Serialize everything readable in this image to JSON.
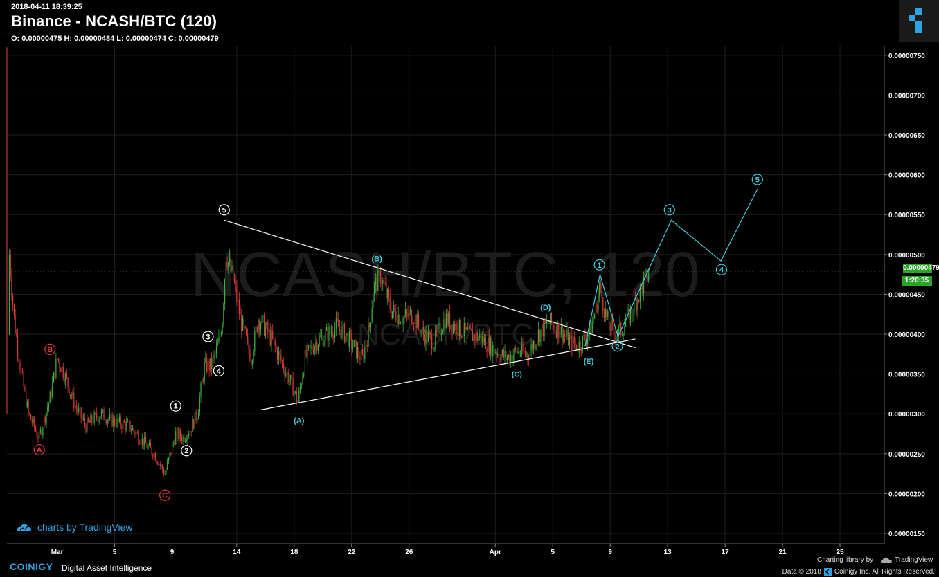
{
  "header": {
    "timestamp": "2018-04-11 18:39:25",
    "title": "Binance - NCASH/BTC (120)",
    "ohlc": "O: 0.00000475 H: 0.00000484 L: 0.00000474 C: 0.00000479"
  },
  "watermark": {
    "main": "NCASH/BTC, 120",
    "sub": "NCASH/BTC"
  },
  "branding": {
    "tradingview": "charts by TradingView",
    "coinigy": "COINIGY",
    "coinigy_tagline": "Digital Asset Intelligence",
    "charting_library": "Charting library by",
    "tradingview_name": "TradingView",
    "copyright": "Data © 2018",
    "copyright_owner": "Coinigy Inc. All Rights Reserved."
  },
  "colors": {
    "background": "#000000",
    "candle_up": "#3cb13c",
    "candle_down": "#e03b3b",
    "wave_white": "#ffffff",
    "wave_cyan": "#3fd0e0",
    "wave_red": "#e03b3b",
    "price_tag": "#2aa52a"
  },
  "chart_data": {
    "type": "candlestick",
    "exchange": "Binance",
    "pair": "NCASH/BTC",
    "interval": "120",
    "ylim": [
      1.37e-06,
      7.62e-06
    ],
    "y_ticks": [
      "0.00000150",
      "0.00000200",
      "0.00000250",
      "0.00000300",
      "0.00000350",
      "0.00000400",
      "0.00000450",
      "0.00000500",
      "0.00000550",
      "0.00000600",
      "0.00000650",
      "0.00000700",
      "0.00000750"
    ],
    "x_ticks": [
      "Mar",
      "5",
      "9",
      "14",
      "18",
      "22",
      "26",
      "Apr",
      "5",
      "9",
      "13",
      "17",
      "21",
      "25"
    ],
    "last_price": "0.00000479",
    "countdown": "1:20:35",
    "price_path": [
      [
        "2018-02-26 00:00",
        3e-06
      ],
      [
        "2018-02-26 04:00",
        5e-06
      ],
      [
        "2018-02-26 12:00",
        4.2e-06
      ],
      [
        "2018-02-27 00:00",
        3.5e-06
      ],
      [
        "2018-02-27 12:00",
        3e-06
      ],
      [
        "2018-02-28 06:00",
        2.7e-06
      ],
      [
        "2018-03-01 00:00",
        3.2e-06
      ],
      [
        "2018-03-01 12:00",
        3.7e-06
      ],
      [
        "2018-03-02 00:00",
        3.5e-06
      ],
      [
        "2018-03-02 18:00",
        3.1e-06
      ],
      [
        "2018-03-03 12:00",
        2.85e-06
      ],
      [
        "2018-03-04 12:00",
        3e-06
      ],
      [
        "2018-03-05 12:00",
        2.9e-06
      ],
      [
        "2018-03-06 12:00",
        2.85e-06
      ],
      [
        "2018-03-07 06:00",
        2.7e-06
      ],
      [
        "2018-03-08 06:00",
        2.5e-06
      ],
      [
        "2018-03-09 00:00",
        2.25e-06
      ],
      [
        "2018-03-09 18:00",
        2.75e-06
      ],
      [
        "2018-03-10 06:00",
        2.7e-06
      ],
      [
        "2018-03-10 18:00",
        2.8e-06
      ],
      [
        "2018-03-11 06:00",
        3e-06
      ],
      [
        "2018-03-11 18:00",
        3.6e-06
      ],
      [
        "2018-03-12 06:00",
        3.6e-06
      ],
      [
        "2018-03-12 18:00",
        3.9e-06
      ],
      [
        "2018-03-13 00:00",
        4.2e-06
      ],
      [
        "2018-03-13 06:00",
        5e-06
      ],
      [
        "2018-03-13 18:00",
        4.7e-06
      ],
      [
        "2018-03-14 06:00",
        4.2e-06
      ],
      [
        "2018-03-15 00:00",
        3.7e-06
      ],
      [
        "2018-03-15 12:00",
        4.2e-06
      ],
      [
        "2018-03-16 06:00",
        4e-06
      ],
      [
        "2018-03-17 00:00",
        3.7e-06
      ],
      [
        "2018-03-17 18:00",
        3.4e-06
      ],
      [
        "2018-03-18 06:00",
        3.15e-06
      ],
      [
        "2018-03-18 18:00",
        3.7e-06
      ],
      [
        "2018-03-19 12:00",
        3.9e-06
      ],
      [
        "2018-03-20 06:00",
        4e-06
      ],
      [
        "2018-03-21 00:00",
        4.1e-06
      ],
      [
        "2018-03-21 18:00",
        3.95e-06
      ],
      [
        "2018-03-22 12:00",
        3.75e-06
      ],
      [
        "2018-03-22 18:00",
        3.7e-06
      ],
      [
        "2018-03-23 06:00",
        4.1e-06
      ],
      [
        "2018-03-23 12:00",
        4.55e-06
      ],
      [
        "2018-03-24 00:00",
        4.75e-06
      ],
      [
        "2018-03-24 18:00",
        4.3e-06
      ],
      [
        "2018-03-25 12:00",
        4.2e-06
      ],
      [
        "2018-03-26 06:00",
        4.25e-06
      ],
      [
        "2018-03-27 00:00",
        4e-06
      ],
      [
        "2018-03-27 18:00",
        3.9e-06
      ],
      [
        "2018-03-28 12:00",
        4.2e-06
      ],
      [
        "2018-03-29 06:00",
        4.1e-06
      ],
      [
        "2018-03-30 00:00",
        4e-06
      ],
      [
        "2018-03-31 00:00",
        3.95e-06
      ],
      [
        "2018-04-01 00:00",
        3.8e-06
      ],
      [
        "2018-04-01 18:00",
        3.7e-06
      ],
      [
        "2018-04-02 12:00",
        3.78e-06
      ],
      [
        "2018-04-03 06:00",
        3.75e-06
      ],
      [
        "2018-04-04 00:00",
        4e-06
      ],
      [
        "2018-04-04 18:00",
        4.15e-06
      ],
      [
        "2018-04-05 12:00",
        4.05e-06
      ],
      [
        "2018-04-06 06:00",
        3.9e-06
      ],
      [
        "2018-04-06 18:00",
        3.85e-06
      ],
      [
        "2018-04-07 12:00",
        4e-06
      ],
      [
        "2018-04-08 00:00",
        4.3e-06
      ],
      [
        "2018-04-08 06:00",
        4.6e-06
      ],
      [
        "2018-04-08 18:00",
        4.2e-06
      ],
      [
        "2018-04-09 06:00",
        4e-06
      ],
      [
        "2018-04-09 18:00",
        4.05e-06
      ],
      [
        "2018-04-10 06:00",
        4.2e-06
      ],
      [
        "2018-04-10 18:00",
        4.4e-06
      ],
      [
        "2018-04-11 06:00",
        4.6e-06
      ],
      [
        "2018-04-11 18:00",
        4.79e-06
      ]
    ],
    "trendlines": [
      {
        "name": "triangle-upper-line",
        "color": "#ffffff",
        "points": [
          [
            "2018-03-13 03:00",
            5.43e-06
          ],
          [
            "2018-04-10 18:00",
            3.83e-06
          ]
        ]
      },
      {
        "name": "triangle-lower-line",
        "color": "#ffffff",
        "points": [
          [
            "2018-03-15 16:00",
            3.05e-06
          ],
          [
            "2018-04-10 18:00",
            3.94e-06
          ]
        ]
      },
      {
        "name": "projection-path",
        "color": "#3fd0e0",
        "points": [
          [
            "2018-04-07 06:00",
            3.85e-06
          ],
          [
            "2018-04-08 07:00",
            4.75e-06
          ],
          [
            "2018-04-09 13:00",
            3.97e-06
          ],
          [
            "2018-04-13 06:00",
            5.43e-06
          ],
          [
            "2018-04-16 17:00",
            4.92e-06
          ],
          [
            "2018-04-19 06:00",
            5.82e-06
          ]
        ]
      }
    ],
    "wave_labels": [
      {
        "text": "A",
        "circle": true,
        "color": "#e03b3b",
        "at": [
          "2018-02-28 06:00",
          2.55e-06
        ]
      },
      {
        "text": "B",
        "circle": true,
        "color": "#e03b3b",
        "at": [
          "2018-03-01 00:00",
          3.81e-06
        ]
      },
      {
        "text": "C",
        "circle": true,
        "color": "#e03b3b",
        "at": [
          "2018-03-09 00:00",
          1.98e-06
        ]
      },
      {
        "text": "1",
        "circle": true,
        "color": "#ffffff",
        "at": [
          "2018-03-09 18:00",
          3.1e-06
        ]
      },
      {
        "text": "2",
        "circle": true,
        "color": "#ffffff",
        "at": [
          "2018-03-10 12:00",
          2.54e-06
        ]
      },
      {
        "text": "3",
        "circle": true,
        "color": "#ffffff",
        "at": [
          "2018-03-12 00:00",
          3.97e-06
        ]
      },
      {
        "text": "4",
        "circle": true,
        "color": "#ffffff",
        "at": [
          "2018-03-12 18:00",
          3.54e-06
        ]
      },
      {
        "text": "5",
        "circle": true,
        "color": "#ffffff",
        "at": [
          "2018-03-13 03:00",
          5.56e-06
        ]
      },
      {
        "text": "(A)",
        "circle": false,
        "color": "#3fd0e0",
        "at": [
          "2018-03-18 08:00",
          2.92e-06
        ]
      },
      {
        "text": "(B)",
        "circle": false,
        "color": "#3fd0e0",
        "at": [
          "2018-03-23 18:00",
          4.95e-06
        ]
      },
      {
        "text": "(C)",
        "circle": false,
        "color": "#3fd0e0",
        "at": [
          "2018-04-02 12:00",
          3.5e-06
        ]
      },
      {
        "text": "(D)",
        "circle": false,
        "color": "#3fd0e0",
        "at": [
          "2018-04-04 12:00",
          4.34e-06
        ]
      },
      {
        "text": "(E)",
        "circle": false,
        "color": "#3fd0e0",
        "at": [
          "2018-04-07 12:00",
          3.66e-06
        ]
      },
      {
        "text": "1",
        "circle": true,
        "color": "#3fd0e0",
        "at": [
          "2018-04-08 06:00",
          4.87e-06
        ]
      },
      {
        "text": "2",
        "circle": true,
        "color": "#3fd0e0",
        "at": [
          "2018-04-09 12:00",
          3.85e-06
        ]
      },
      {
        "text": "3",
        "circle": true,
        "color": "#3fd0e0",
        "at": [
          "2018-04-13 03:00",
          5.56e-06
        ]
      },
      {
        "text": "4",
        "circle": true,
        "color": "#3fd0e0",
        "at": [
          "2018-04-16 18:00",
          4.81e-06
        ]
      },
      {
        "text": "5",
        "circle": true,
        "color": "#3fd0e0",
        "at": [
          "2018-04-19 06:00",
          5.94e-06
        ]
      }
    ]
  }
}
